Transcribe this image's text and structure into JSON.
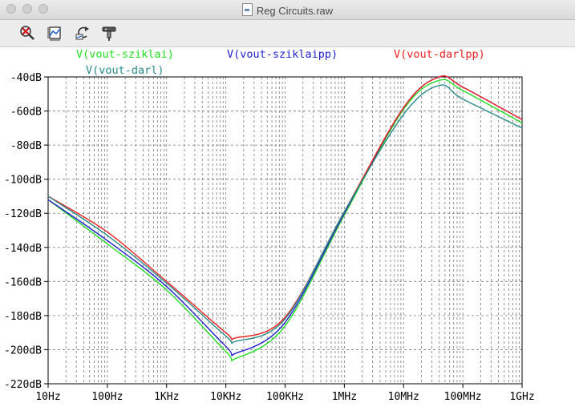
{
  "window": {
    "title": "Reg Circuits.raw"
  },
  "toolbar": {
    "buttons": [
      "zoom-cancel-icon",
      "autorange-icon",
      "pan-back-icon",
      "probe-icon"
    ]
  },
  "chart_data": {
    "type": "line",
    "x_scale": "log",
    "y_scale": "linear",
    "x_range": [
      10,
      1000000000
    ],
    "ylim": [
      -220,
      -40
    ],
    "grid": true,
    "legend": "top",
    "x_ticks": [
      "10Hz",
      "100Hz",
      "1KHz",
      "10KHz",
      "100KHz",
      "1MHz",
      "10MHz",
      "100MHz",
      "1GHz"
    ],
    "y_ticks": [
      "-40dB",
      "-60dB",
      "-80dB",
      "-100dB",
      "-120dB",
      "-140dB",
      "-160dB",
      "-180dB",
      "-200dB",
      "-220dB"
    ],
    "series": [
      {
        "name": "V(vout-sziklai)",
        "color": "#22dd22",
        "x": [
          10,
          100,
          1000,
          10000,
          15000,
          100000,
          1000000,
          10000000,
          40000000,
          100000000,
          1000000000
        ],
        "y": [
          -112,
          -138,
          -165,
          -201,
          -205,
          -186,
          -121,
          -59,
          -42,
          -48,
          -67
        ]
      },
      {
        "name": "V(vout-sziklaipp)",
        "color": "#2222cc",
        "x": [
          10,
          100,
          1000,
          10000,
          15000,
          100000,
          1000000,
          10000000,
          40000000,
          100000000,
          1000000000
        ],
        "y": [
          -112,
          -136,
          -163,
          -198,
          -202,
          -184,
          -120,
          -58,
          -40,
          -46,
          -65
        ]
      },
      {
        "name": "V(vout-darlpp)",
        "color": "#ee2222",
        "x": [
          10,
          100,
          1000,
          10000,
          15000,
          100000,
          1000000,
          10000000,
          40000000,
          100000000,
          1000000000
        ],
        "y": [
          -110,
          -131,
          -160,
          -190,
          -193,
          -181,
          -119,
          -58,
          -40,
          -46,
          -65
        ]
      },
      {
        "name": "V(vout-darl)",
        "color": "#2a8a8a",
        "x": [
          10,
          100,
          1000,
          10000,
          15000,
          100000,
          1000000,
          10000000,
          40000000,
          100000000,
          1000000000
        ],
        "y": [
          -110,
          -133,
          -161,
          -192,
          -195,
          -182,
          -119,
          -62,
          -45,
          -53,
          -70
        ]
      }
    ]
  }
}
